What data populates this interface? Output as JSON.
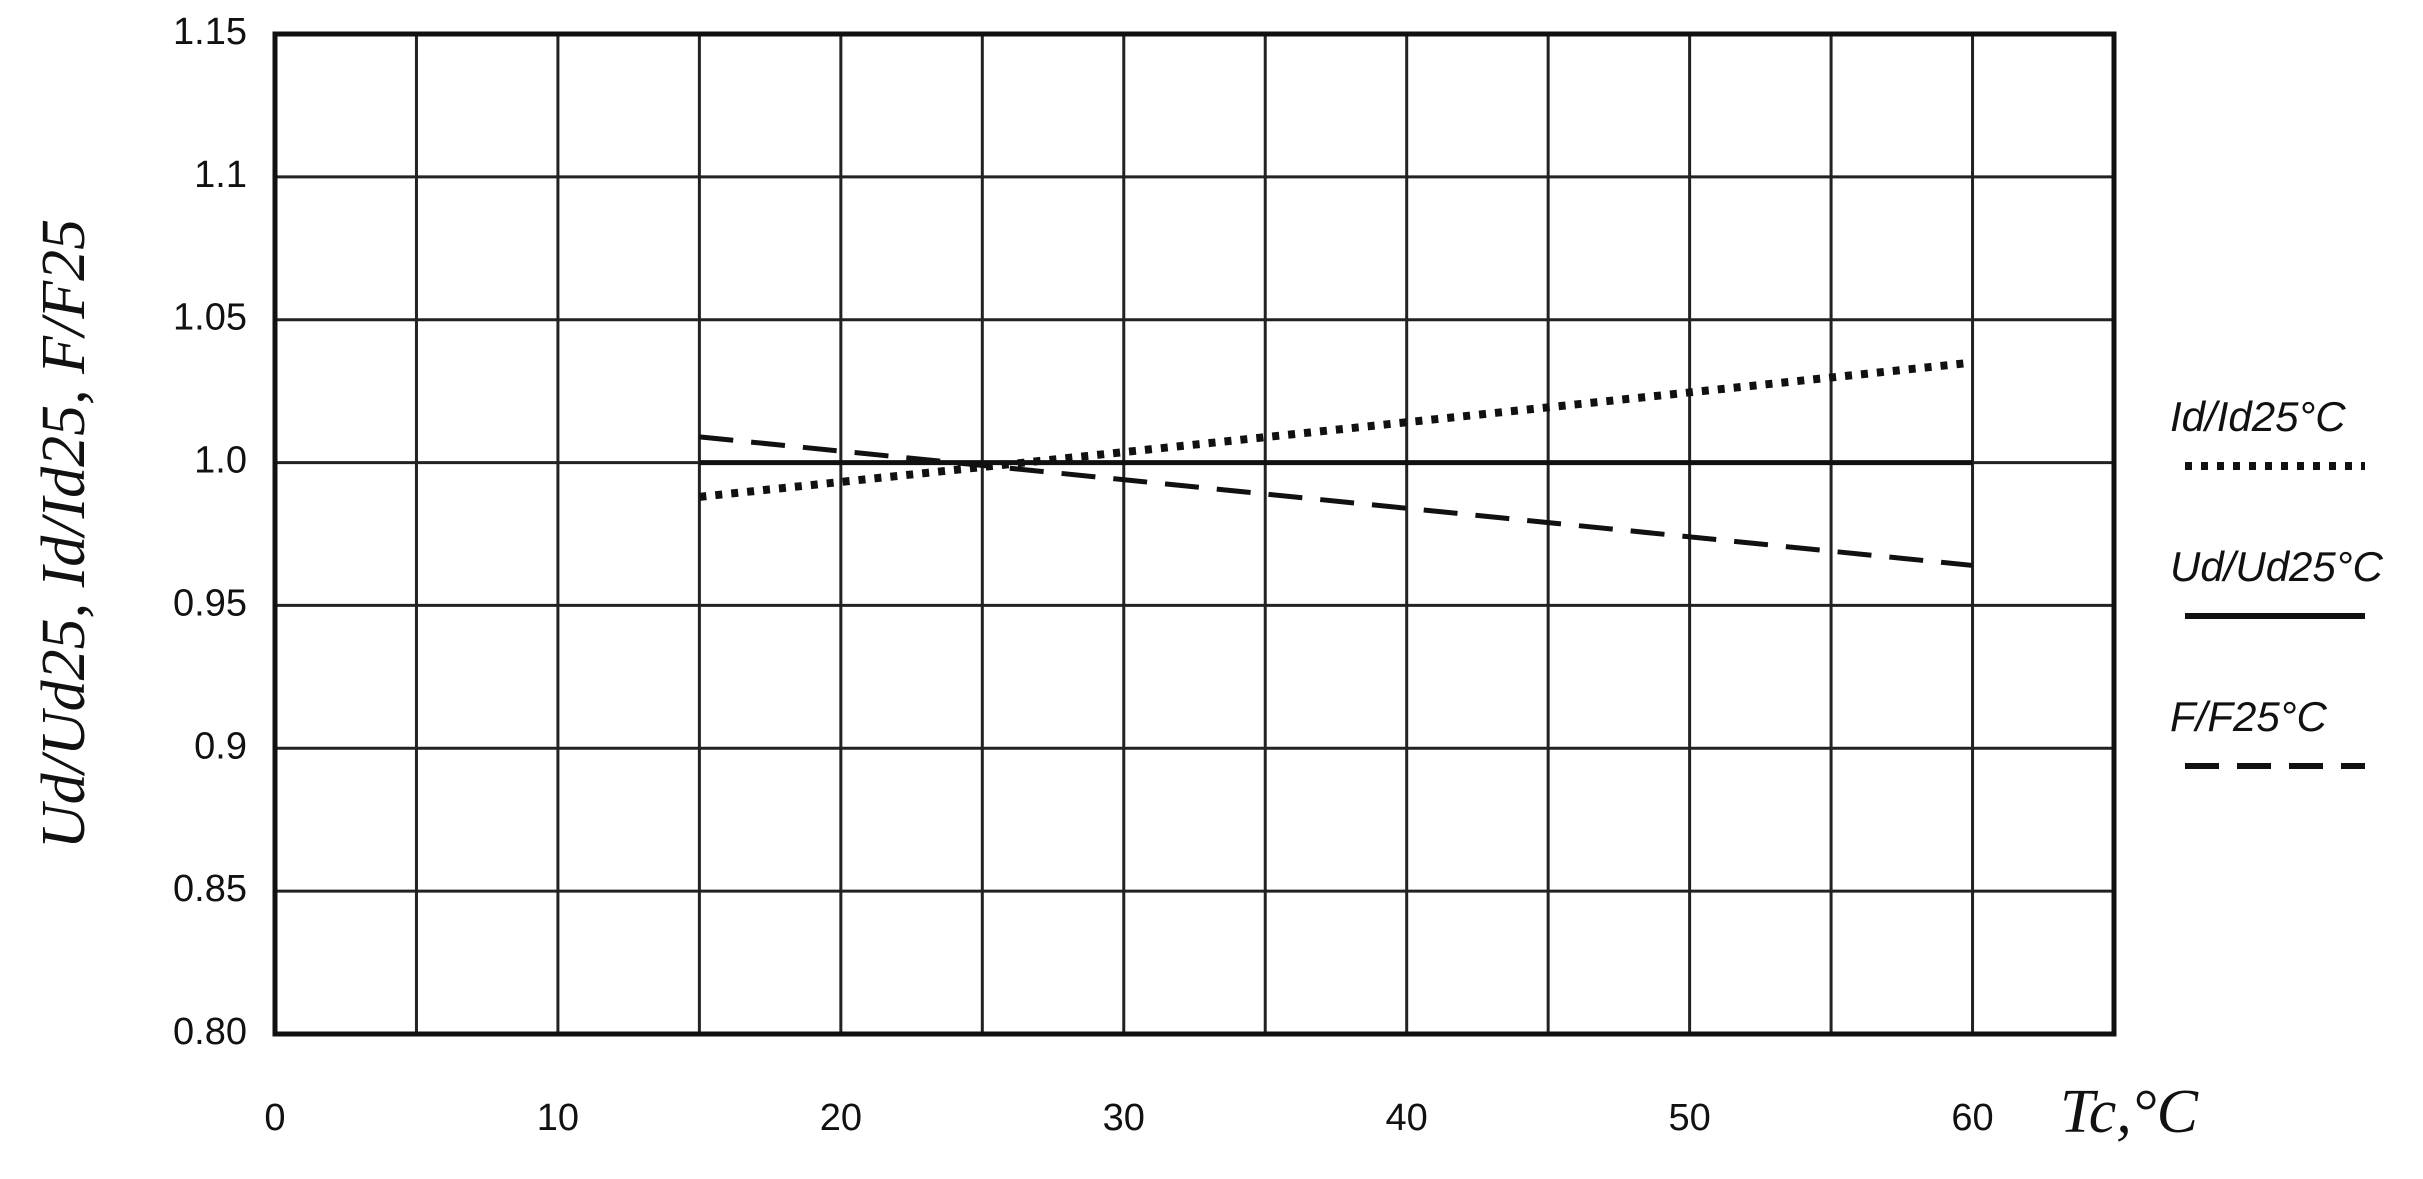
{
  "chart_data": {
    "type": "line",
    "xlabel": "Tc,°C",
    "ylabel": "Ud/Ud25, Id/Id25, F/F25",
    "xlim": [
      0,
      65
    ],
    "xticks": [
      0,
      10,
      20,
      30,
      40,
      50,
      60
    ],
    "xminor_ticks": [
      5,
      15,
      25,
      35,
      45,
      55,
      65
    ],
    "ylim": [
      0.8,
      1.15
    ],
    "yticks": [
      {
        "value": 0.8,
        "label": "0.80"
      },
      0.85,
      0.9,
      0.95,
      {
        "value": 1.0,
        "label": "1.0"
      },
      1.05,
      1.1,
      1.15
    ],
    "grid": true,
    "legend": "right",
    "series": [
      {
        "name": "Id/Id25°C",
        "color": "#111111",
        "dash": "dotted",
        "x": [
          15,
          60
        ],
        "values": [
          0.988,
          1.035
        ]
      },
      {
        "name": "Ud/Ud25°C",
        "color": "#111111",
        "dash": "solid",
        "x": [
          15,
          60
        ],
        "values": [
          1.0,
          1.0
        ]
      },
      {
        "name": "F/F25°C",
        "color": "#111111",
        "dash": "dashed",
        "x": [
          15,
          60
        ],
        "values": [
          1.009,
          0.964
        ]
      }
    ]
  }
}
